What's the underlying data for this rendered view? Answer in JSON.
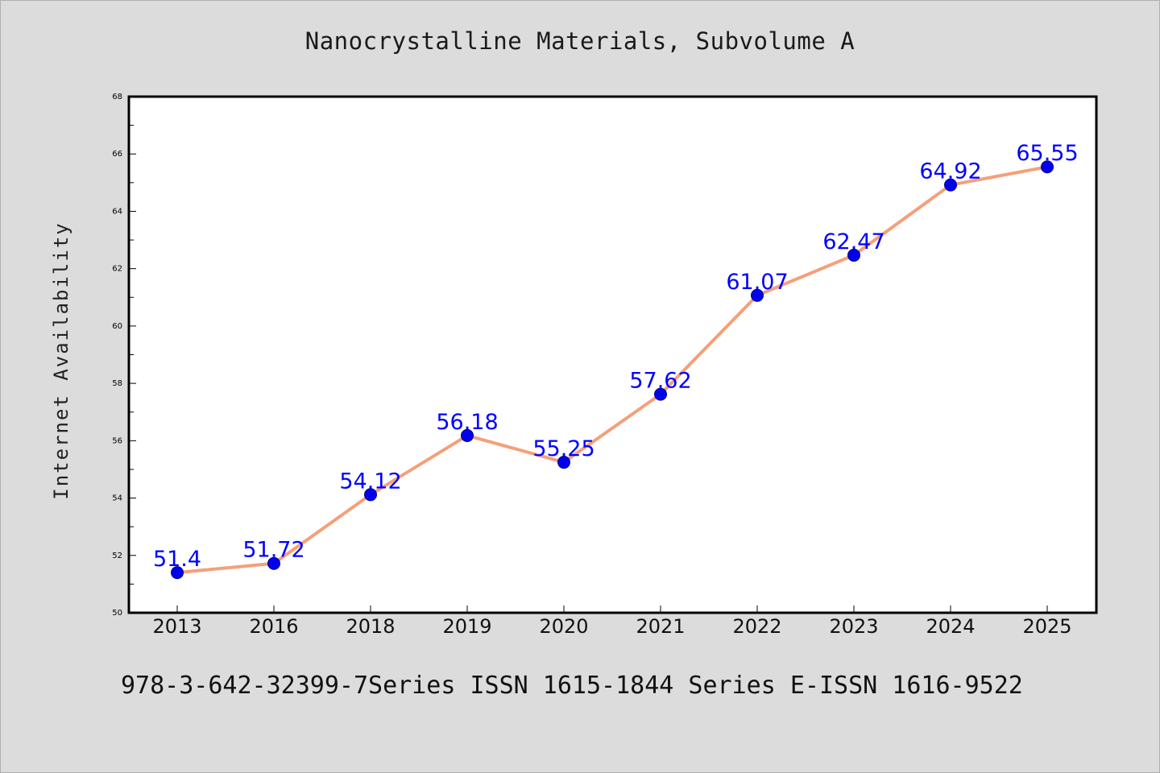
{
  "chart_data": {
    "type": "line",
    "title": "Nanocrystalline Materials, Subvolume A",
    "ylabel": "Internet Availability",
    "xlabel": "",
    "categories": [
      "2013",
      "2016",
      "2018",
      "2019",
      "2020",
      "2021",
      "2022",
      "2023",
      "2024",
      "2025"
    ],
    "values": [
      51.4,
      51.72,
      54.12,
      56.18,
      55.25,
      57.62,
      61.07,
      62.47,
      64.92,
      65.55
    ],
    "data_labels": [
      "51.4",
      "51.72",
      "54.12",
      "56.18",
      "55.25",
      "57.62",
      "61.07",
      "62.47",
      "64.92",
      "65.55"
    ],
    "ylim": [
      50,
      68
    ],
    "y_ticks": [
      "50",
      "52",
      "54",
      "56",
      "58",
      "60",
      "62",
      "64",
      "66",
      "68"
    ],
    "grid": false,
    "line_color": "#f4a07a",
    "marker_color": "#0000ee",
    "label_color": "#0000ff",
    "background_color": "#dcdcdc",
    "plot_background_color": "#ffffff"
  },
  "footer": {
    "text": "978-3-642-32399-7Series ISSN 1615-1844 Series E-ISSN 1616-9522"
  }
}
